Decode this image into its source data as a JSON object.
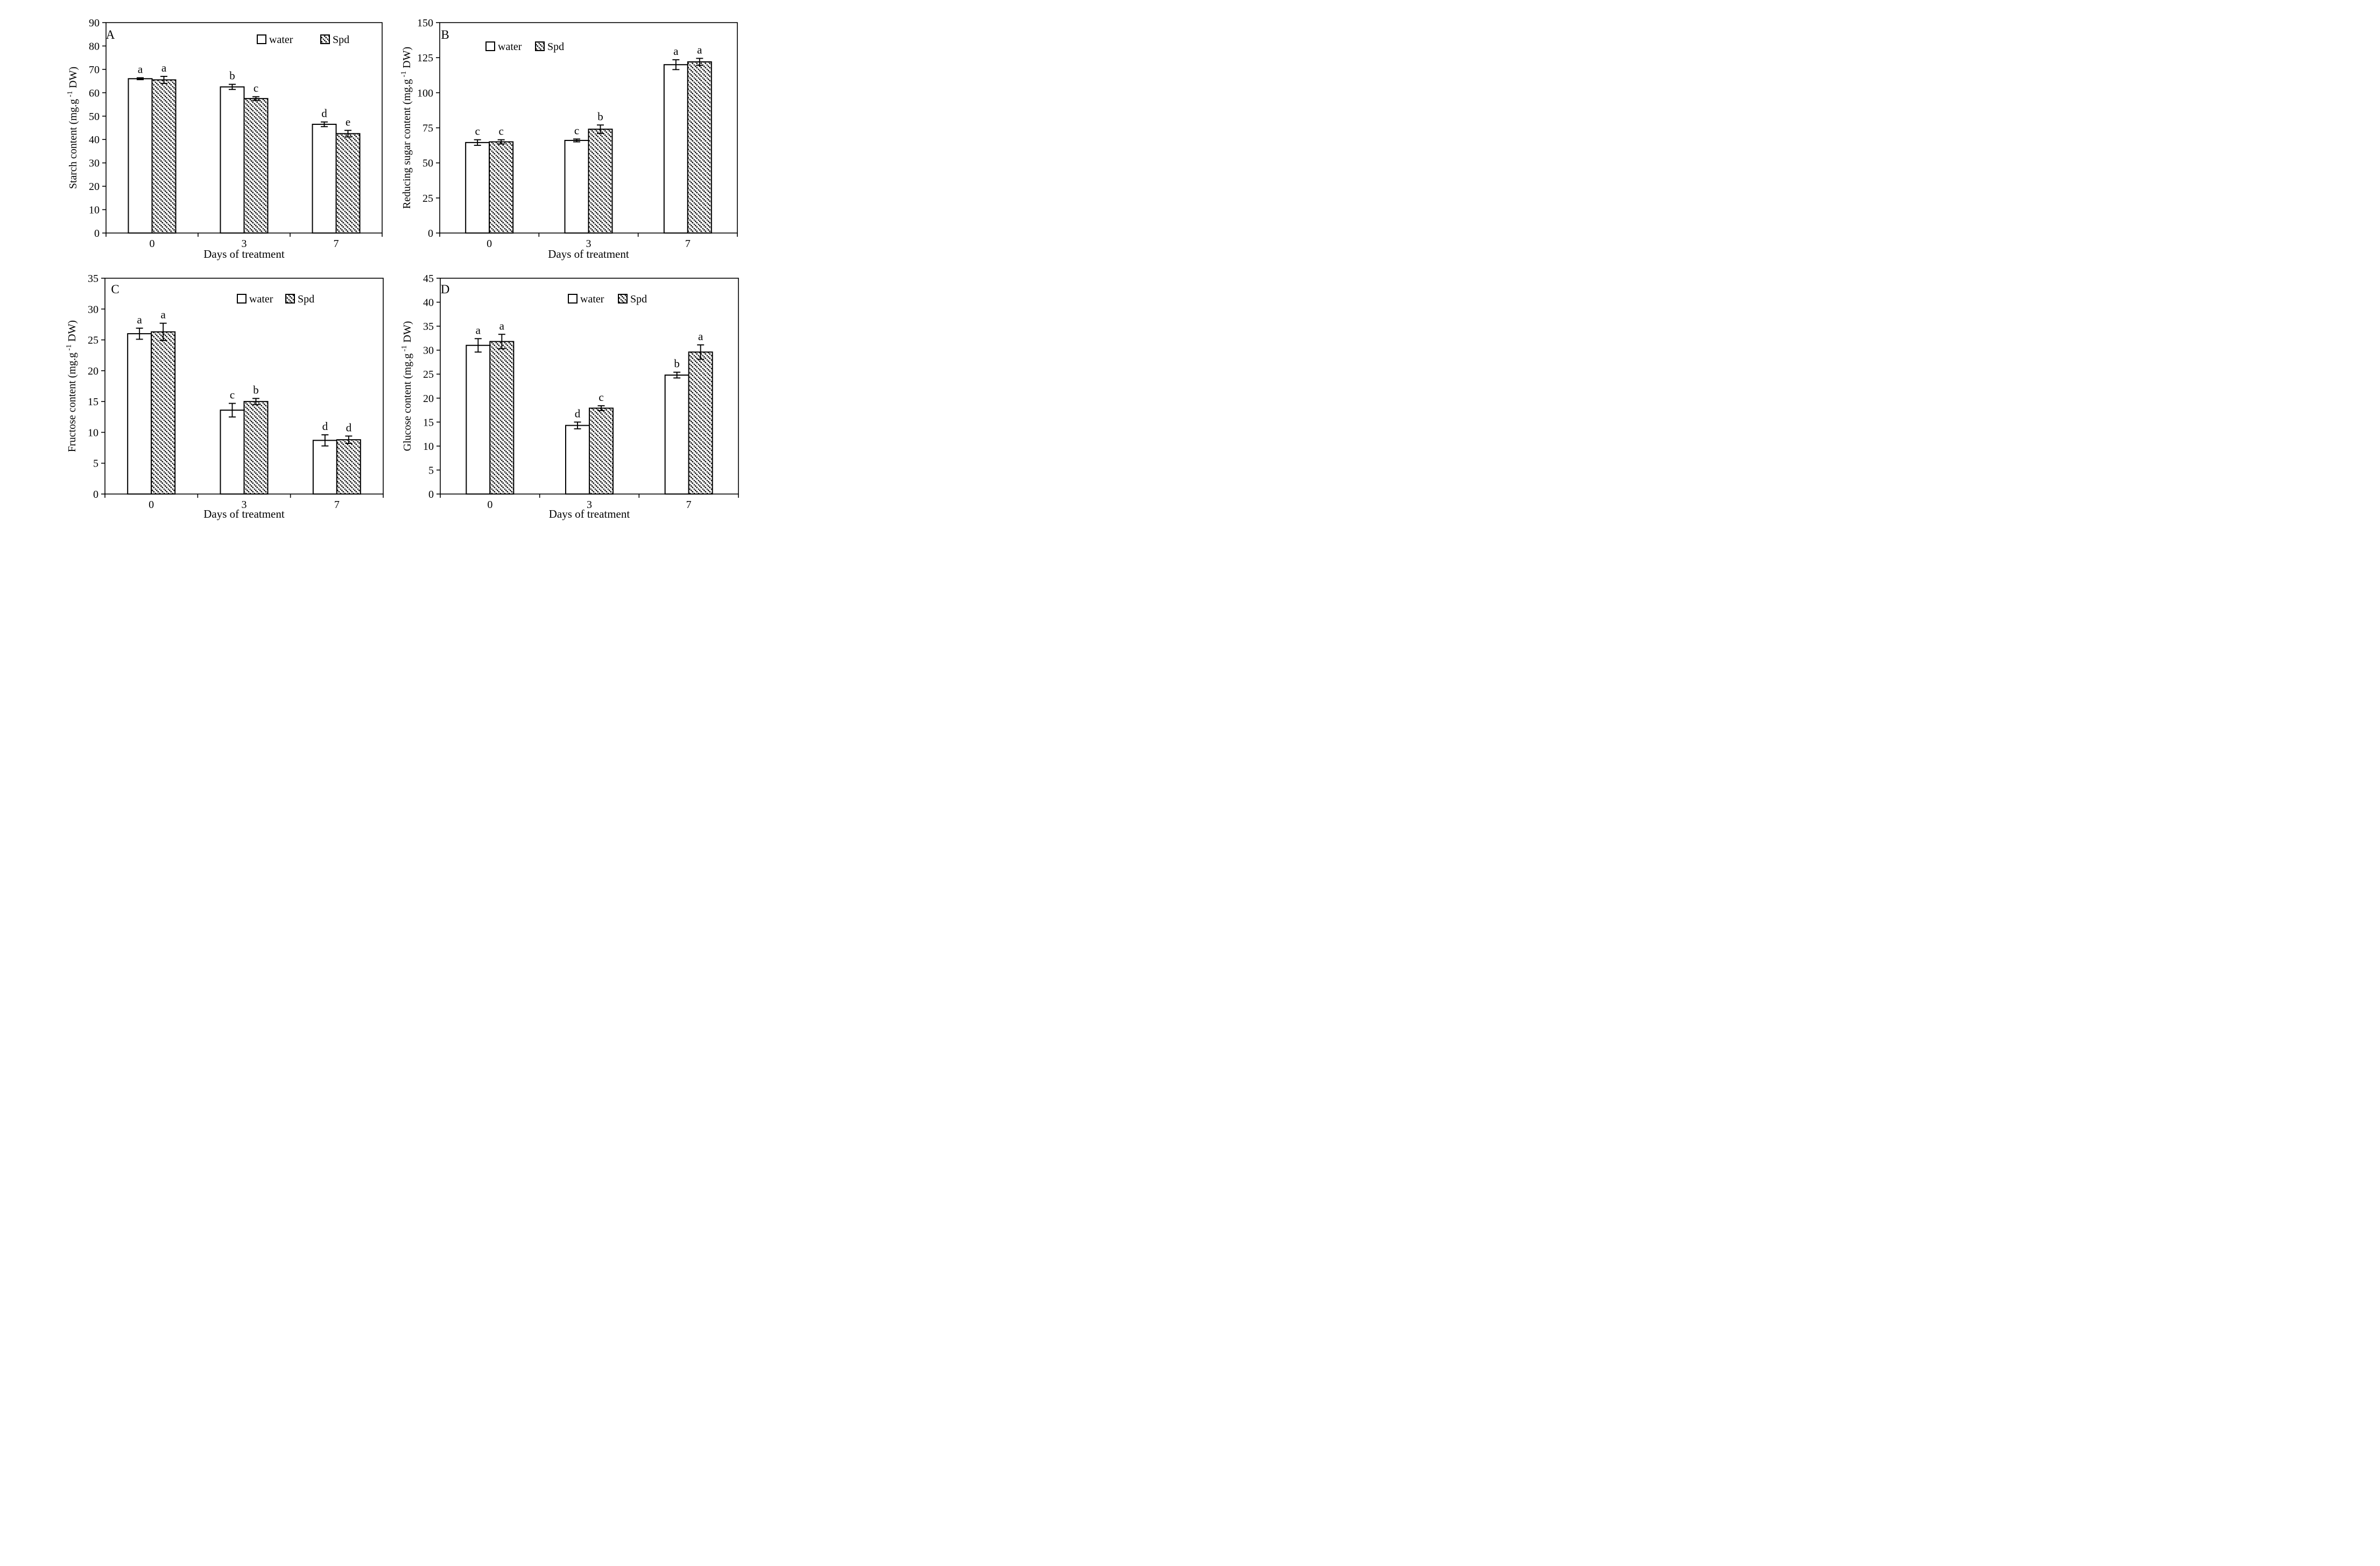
{
  "figure": {
    "background": "#ffffff",
    "ink_color": "#000000",
    "bar_fill_water": "#ffffff",
    "bar_fill_spd": "hatch-diagonal-down",
    "layout": "2x2-grid"
  },
  "chart_data": [
    {
      "panel_letter": "A",
      "type": "bar",
      "ylabel": "Starch content (mg.g -1 DW)",
      "ylabel_parts": {
        "prefix": "Starch content (mg.g",
        "superscript": "-1",
        "suffix": " DW)"
      },
      "xlabel": "Days of treatment",
      "categories": [
        "0",
        "3",
        "7"
      ],
      "ylim": [
        0,
        90
      ],
      "ytick_step": 10,
      "grid": false,
      "legend_labels": [
        "water",
        "Spd"
      ],
      "legend_position": "inside-top-right",
      "series": [
        {
          "name": "water",
          "style": "white",
          "values": [
            66,
            62.5,
            46.5
          ],
          "errors": [
            0.4,
            1.1,
            1.0
          ],
          "sig_letters": [
            "a",
            "b",
            "d"
          ]
        },
        {
          "name": "Spd",
          "style": "hatch",
          "values": [
            65.5,
            57.5,
            42.5
          ],
          "errors": [
            1.5,
            0.8,
            1.4
          ],
          "sig_letters": [
            "a",
            "c",
            "e"
          ]
        }
      ]
    },
    {
      "panel_letter": "B",
      "type": "bar",
      "ylabel": "Reducing sugar content (mg.g -1 DW)",
      "ylabel_parts": {
        "prefix": "Reducing sugar content (mg.g",
        "superscript": "-1",
        "suffix": " DW)"
      },
      "xlabel": "Days of treatment",
      "categories": [
        "0",
        "3",
        "7"
      ],
      "ylim": [
        0,
        150
      ],
      "ytick_step": 25,
      "grid": false,
      "legend_labels": [
        "water",
        "Spd"
      ],
      "legend_position": "inside-top-left",
      "series": [
        {
          "name": "water",
          "style": "white",
          "values": [
            64.5,
            66,
            120
          ],
          "errors": [
            2.0,
            1.0,
            3.5
          ],
          "sig_letters": [
            "c",
            "c",
            "a"
          ]
        },
        {
          "name": "Spd",
          "style": "hatch",
          "values": [
            65,
            74,
            122
          ],
          "errors": [
            1.5,
            3.0,
            2.5
          ],
          "sig_letters": [
            "c",
            "b",
            "a"
          ]
        }
      ]
    },
    {
      "panel_letter": "C",
      "type": "bar",
      "ylabel": "Fructose content (mg.g -1 DW)",
      "ylabel_parts": {
        "prefix": "Fructose content (mg.g",
        "superscript": "-1",
        "suffix": " DW)"
      },
      "xlabel": "Days of treatment",
      "categories": [
        "0",
        "3",
        "7"
      ],
      "ylim": [
        0,
        35
      ],
      "ytick_step": 5,
      "grid": false,
      "legend_labels": [
        "water",
        "Spd"
      ],
      "legend_position": "inside-top-right",
      "series": [
        {
          "name": "water",
          "style": "white",
          "values": [
            26.0,
            13.6,
            8.7
          ],
          "errors": [
            0.9,
            1.1,
            0.9
          ],
          "sig_letters": [
            "a",
            "c",
            "d"
          ]
        },
        {
          "name": "Spd",
          "style": "hatch",
          "values": [
            26.3,
            15.0,
            8.8
          ],
          "errors": [
            1.4,
            0.5,
            0.6
          ],
          "sig_letters": [
            "a",
            "b",
            "d"
          ]
        }
      ]
    },
    {
      "panel_letter": "D",
      "type": "bar",
      "ylabel": "Glucose content (mg.g -1 DW)",
      "ylabel_parts": {
        "prefix": "Glucose content (mg.g",
        "superscript": "-1",
        "suffix": " DW)"
      },
      "xlabel": "Days of treatment",
      "categories": [
        "0",
        "3",
        "7"
      ],
      "ylim": [
        0,
        45
      ],
      "ytick_step": 5,
      "grid": false,
      "legend_labels": [
        "water",
        "Spd"
      ],
      "legend_position": "inside-top-right",
      "series": [
        {
          "name": "water",
          "style": "white",
          "values": [
            31.0,
            14.3,
            24.8
          ],
          "errors": [
            1.4,
            0.7,
            0.6
          ],
          "sig_letters": [
            "a",
            "d",
            "b"
          ]
        },
        {
          "name": "Spd",
          "style": "hatch",
          "values": [
            31.8,
            17.9,
            29.6
          ],
          "errors": [
            1.5,
            0.5,
            1.5
          ],
          "sig_letters": [
            "a",
            "c",
            "a"
          ]
        }
      ]
    }
  ]
}
